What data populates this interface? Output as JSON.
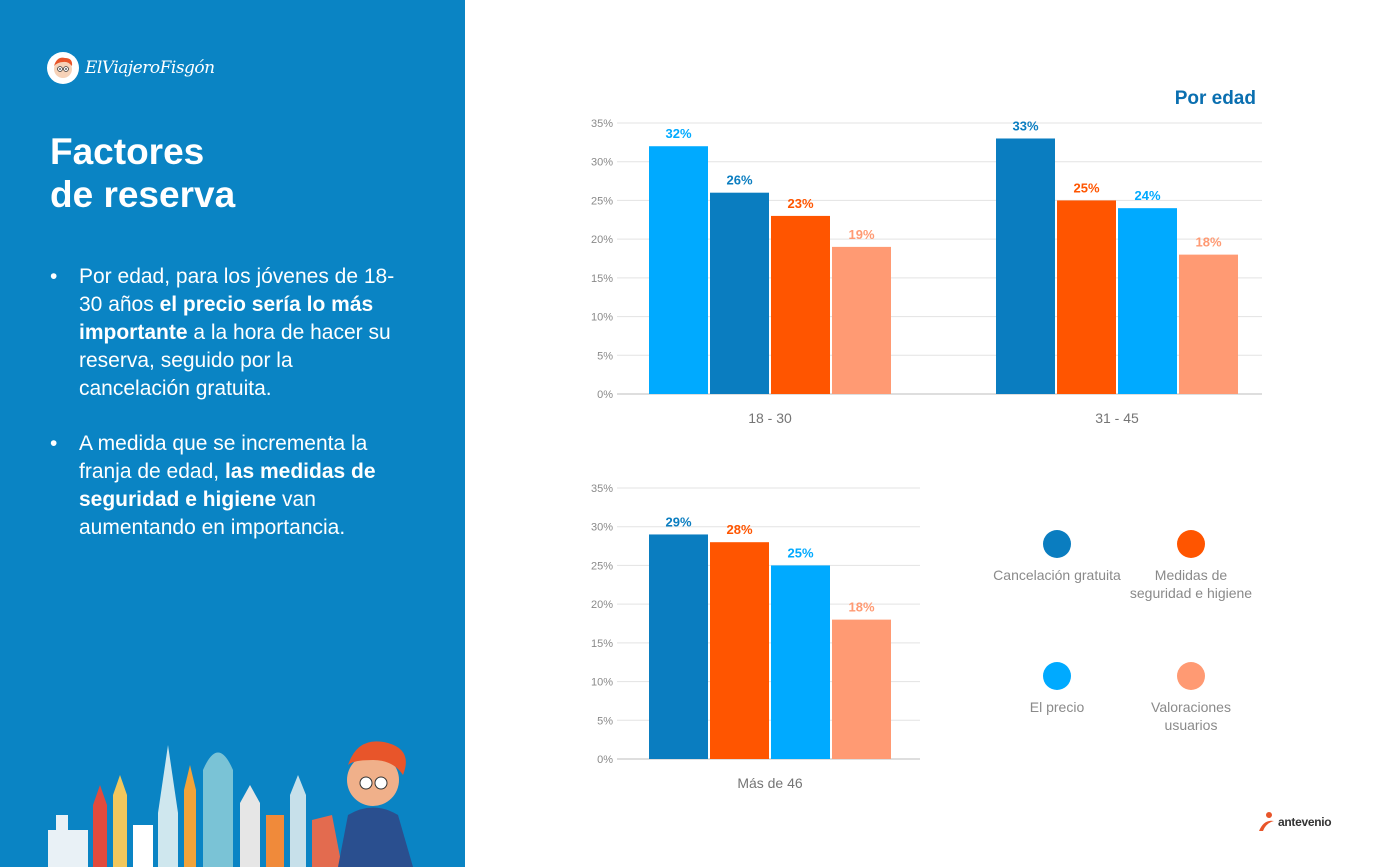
{
  "brand": {
    "name": "ElViajeroFisgón",
    "partner": "antevenio"
  },
  "slide": {
    "title_line1": "Factores",
    "title_line2": "de reserva",
    "bullet1": {
      "pre": "Por edad, para los jóvenes de 18-30 años ",
      "bold": "el precio sería lo más importante",
      "post": " a la hora de hacer su reserva, seguido por la cancelación gratuita."
    },
    "bullet2": {
      "pre": "A medida que se incrementa la franja de edad, ",
      "bold": "las medidas de seguridad e higiene",
      "post": " van aumentando en importancia."
    }
  },
  "panel_label": "Por edad",
  "legend": [
    {
      "label": "Cancelación gratuita",
      "color": "#0a7dc0"
    },
    {
      "label": "Medidas de seguridad e higiene",
      "color": "#ff5500"
    },
    {
      "label": "El precio",
      "color": "#00aaff"
    },
    {
      "label": "Valoraciones usuarios",
      "color": "#ff9a73"
    }
  ],
  "chart_data": [
    {
      "type": "bar",
      "group": "18 - 30",
      "ylim": [
        0,
        35
      ],
      "yticks": [
        "0%",
        "5%",
        "10%",
        "15%",
        "20%",
        "25%",
        "30%",
        "35%"
      ],
      "series": [
        {
          "name": "El precio",
          "value": 32,
          "label": "32%",
          "color": "#00aaff"
        },
        {
          "name": "Cancelación gratuita",
          "value": 26,
          "label": "26%",
          "color": "#0a7dc0"
        },
        {
          "name": "Medidas de seguridad e higiene",
          "value": 23,
          "label": "23%",
          "color": "#ff5500"
        },
        {
          "name": "Valoraciones usuarios",
          "value": 19,
          "label": "19%",
          "color": "#ff9a73"
        }
      ]
    },
    {
      "type": "bar",
      "group": "31 - 45",
      "ylim": [
        0,
        35
      ],
      "yticks": [
        "0%",
        "5%",
        "10%",
        "15%",
        "20%",
        "25%",
        "30%",
        "35%"
      ],
      "series": [
        {
          "name": "Cancelación gratuita",
          "value": 33,
          "label": "33%",
          "color": "#0a7dc0"
        },
        {
          "name": "Medidas de seguridad e higiene",
          "value": 25,
          "label": "25%",
          "color": "#ff5500"
        },
        {
          "name": "El precio",
          "value": 24,
          "label": "24%",
          "color": "#00aaff"
        },
        {
          "name": "Valoraciones usuarios",
          "value": 18,
          "label": "18%",
          "color": "#ff9a73"
        }
      ]
    },
    {
      "type": "bar",
      "group": "Más de 46",
      "ylim": [
        0,
        35
      ],
      "yticks": [
        "0%",
        "5%",
        "10%",
        "15%",
        "20%",
        "25%",
        "30%",
        "35%"
      ],
      "series": [
        {
          "name": "Cancelación gratuita",
          "value": 29,
          "label": "29%",
          "color": "#0a7dc0"
        },
        {
          "name": "Medidas de seguridad e higiene",
          "value": 28,
          "label": "28%",
          "color": "#ff5500"
        },
        {
          "name": "El precio",
          "value": 25,
          "label": "25%",
          "color": "#00aaff"
        },
        {
          "name": "Valoraciones usuarios",
          "value": 18,
          "label": "18%",
          "color": "#ff9a73"
        }
      ]
    }
  ]
}
